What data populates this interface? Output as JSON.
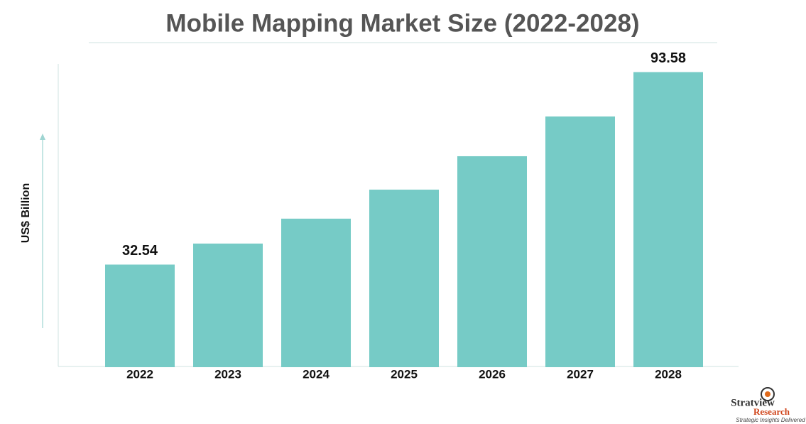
{
  "chart_data": {
    "type": "bar",
    "title": "Mobile Mapping Market Size (2022-2028)",
    "y_label": "US$ Billion",
    "categories": [
      "2022",
      "2023",
      "2024",
      "2025",
      "2026",
      "2027",
      "2028"
    ],
    "values": [
      32.54,
      39.2,
      47.1,
      56.3,
      66.9,
      79.5,
      93.58
    ],
    "color": "#76cbc6",
    "ylim": [
      0,
      100
    ]
  },
  "logo": {
    "name": "Stratview",
    "sub": "Research",
    "tagline": "Strategic Insights Delivered"
  }
}
